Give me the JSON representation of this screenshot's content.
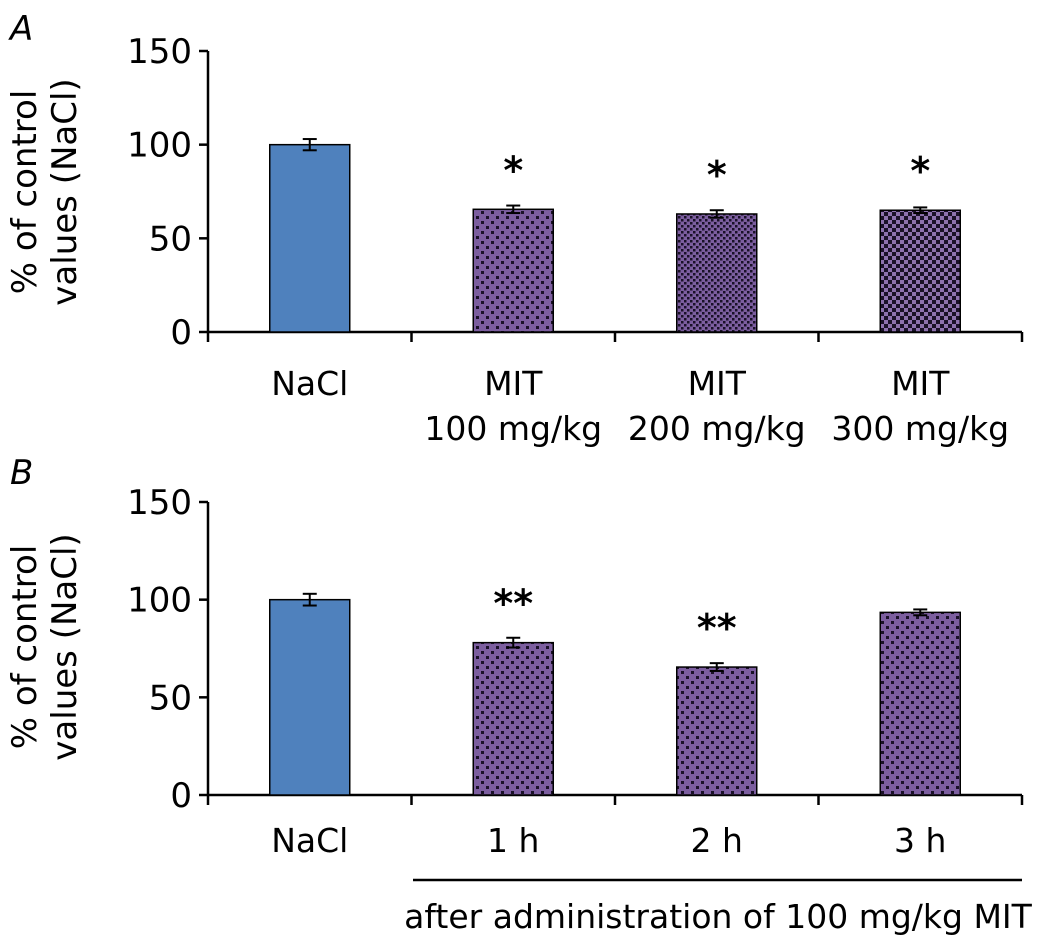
{
  "chart_data": [
    {
      "panel": "A",
      "type": "bar",
      "ylabel_lines": [
        "% of control",
        "values (NaCl)"
      ],
      "ylim": [
        0,
        150
      ],
      "yticks": [
        0,
        50,
        100,
        150
      ],
      "categories": [
        [
          "NaCl"
        ],
        [
          "MIT",
          "100 mg/kg"
        ],
        [
          "MIT",
          "200 mg/kg"
        ],
        [
          "MIT",
          "300 mg/kg"
        ]
      ],
      "values": [
        100,
        65.5,
        63,
        65
      ],
      "errors": [
        3,
        2,
        2,
        1.5
      ],
      "significance": [
        "",
        "*",
        "*",
        "*"
      ],
      "fills": [
        "solid-blue",
        "purple-dots-sparse",
        "purple-dots-dense",
        "purple-checker"
      ],
      "grid": false,
      "legend": false,
      "annotation": ""
    },
    {
      "panel": "B",
      "type": "bar",
      "ylabel_lines": [
        "% of control",
        "values (NaCl)"
      ],
      "ylim": [
        0,
        150
      ],
      "yticks": [
        0,
        50,
        100,
        150
      ],
      "categories": [
        [
          "NaCl"
        ],
        [
          "1 h"
        ],
        [
          "2 h"
        ],
        [
          "3 h"
        ]
      ],
      "values": [
        100,
        78,
        65.5,
        93.5
      ],
      "errors": [
        3,
        2.5,
        2,
        1.5
      ],
      "significance": [
        "",
        "**",
        "**",
        ""
      ],
      "fills": [
        "solid-blue",
        "purple-dots-sparse",
        "purple-dots-sparse",
        "purple-dots-sparse"
      ],
      "grid": false,
      "legend": false,
      "annotation": "after administration of 100 mg/kg MIT"
    }
  ],
  "colors": {
    "nacl_bar": "#4f81bd",
    "mit_bar": "#7c5e9f",
    "pattern_dot": "#1a1128",
    "axis": "#000000"
  }
}
